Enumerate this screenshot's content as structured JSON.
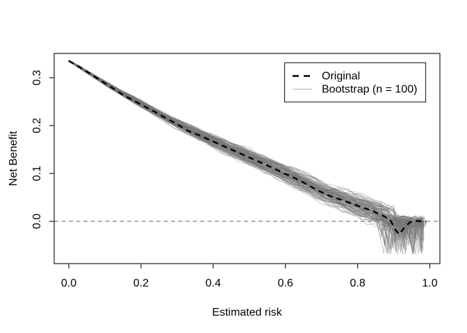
{
  "figure": {
    "background": "#ffffff",
    "title": ""
  },
  "chart_data": {
    "type": "line",
    "title": "",
    "xlabel": "Estimated risk",
    "ylabel": "Net Benefit",
    "xlim": [
      -0.04042,
      1.02791
    ],
    "ylim": [
      -0.08841,
      0.35072
    ],
    "grid": false,
    "x_ticks": {
      "values": [
        0.0,
        0.2,
        0.4,
        0.6,
        0.8,
        1.0
      ],
      "labels": [
        "0.0",
        "0.2",
        "0.4",
        "0.6",
        "0.8",
        "1.0"
      ]
    },
    "y_ticks": {
      "values": [
        0.0,
        0.1,
        0.2,
        0.3
      ],
      "labels": [
        "0.0",
        "0.1",
        "0.2",
        "0.3"
      ]
    },
    "reference_line": {
      "y": 0,
      "style": "dashed",
      "color": "#7d7d7d",
      "width": 1.3,
      "dash": "6 4.5"
    },
    "legend": {
      "position": "topright",
      "entries": [
        {
          "label": "Original",
          "line_style": "dashed",
          "color": "#000000"
        },
        {
          "label": "Bootstrap (n = 100)",
          "line_style": "solid",
          "color": "#aaaaaa"
        }
      ]
    },
    "series": [
      {
        "name": "Original",
        "style": "dashed",
        "color": "#000000",
        "width": 2.4,
        "dash": "8 6",
        "points": [
          [
            0.0,
            0.335
          ],
          [
            0.03,
            0.322
          ],
          [
            0.06,
            0.308
          ],
          [
            0.09,
            0.293
          ],
          [
            0.12,
            0.279
          ],
          [
            0.15,
            0.264
          ],
          [
            0.18,
            0.252
          ],
          [
            0.21,
            0.24
          ],
          [
            0.24,
            0.228
          ],
          [
            0.27,
            0.215
          ],
          [
            0.3,
            0.203
          ],
          [
            0.33,
            0.189
          ],
          [
            0.36,
            0.18
          ],
          [
            0.39,
            0.17
          ],
          [
            0.42,
            0.16
          ],
          [
            0.45,
            0.15
          ],
          [
            0.48,
            0.14
          ],
          [
            0.51,
            0.13
          ],
          [
            0.54,
            0.12
          ],
          [
            0.57,
            0.11
          ],
          [
            0.6,
            0.099
          ],
          [
            0.63,
            0.089
          ],
          [
            0.66,
            0.077
          ],
          [
            0.69,
            0.064
          ],
          [
            0.72,
            0.054
          ],
          [
            0.75,
            0.046
          ],
          [
            0.78,
            0.038
          ],
          [
            0.81,
            0.03
          ],
          [
            0.84,
            0.022
          ],
          [
            0.87,
            0.012
          ],
          [
            0.89,
            0.003
          ],
          [
            0.905,
            -0.018
          ],
          [
            0.915,
            -0.027
          ],
          [
            0.93,
            -0.013
          ],
          [
            0.945,
            -0.002
          ],
          [
            0.96,
            0.001
          ],
          [
            0.975,
            0.0
          ],
          [
            0.99,
            0.0
          ]
        ]
      },
      {
        "name": "Bootstrap (n = 100)",
        "style": "solid",
        "n": 100,
        "color": "#787878",
        "opacity": 0.45,
        "width": 0.9,
        "seed": 20240117,
        "trend": [
          [
            0.0,
            0.3355
          ],
          [
            0.05,
            0.312
          ],
          [
            0.1,
            0.289
          ],
          [
            0.15,
            0.266
          ],
          [
            0.2,
            0.245
          ],
          [
            0.25,
            0.2235
          ],
          [
            0.3,
            0.2035
          ],
          [
            0.35,
            0.1855
          ],
          [
            0.4,
            0.1675
          ],
          [
            0.45,
            0.1495
          ],
          [
            0.5,
            0.1325
          ],
          [
            0.55,
            0.1155
          ],
          [
            0.6,
            0.0985
          ],
          [
            0.65,
            0.0805
          ],
          [
            0.7,
            0.062
          ],
          [
            0.75,
            0.047
          ],
          [
            0.8,
            0.0335
          ],
          [
            0.85,
            0.019
          ],
          [
            0.9,
            0.006
          ],
          [
            0.95,
            0.0
          ],
          [
            0.99,
            0.0
          ]
        ],
        "spread": {
          "base": 0.002,
          "slope": 0.023
        },
        "tail": {
          "start_min": 0.85,
          "start_range": 0.06,
          "end_min": 0.93,
          "end_max": 0.99,
          "dip_max": -0.075,
          "deep_fraction": 0.35
        }
      }
    ]
  },
  "axes": {
    "box_color": "#2b2b2b",
    "tick_color": "#2b2b2b",
    "label_color": "#000000"
  }
}
